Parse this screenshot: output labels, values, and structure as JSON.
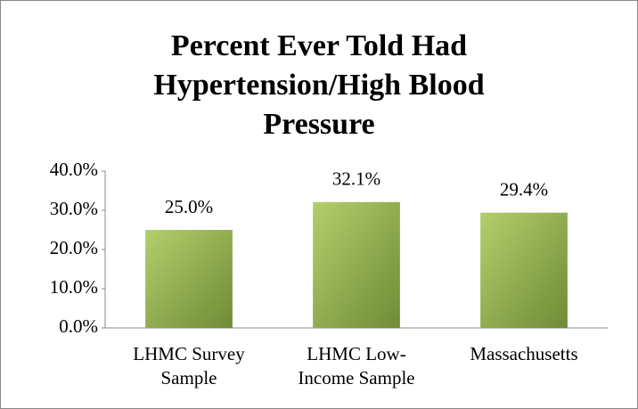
{
  "chart_data": {
    "type": "bar",
    "title": "Percent Ever Told Had Hypertension/High Blood Pressure",
    "categories": [
      "LHMC Survey Sample",
      "LHMC Low-Income Sample",
      "Massachusetts"
    ],
    "values": [
      25.0,
      32.1,
      29.4
    ],
    "value_labels": [
      "25.0%",
      "32.1%",
      "29.4%"
    ],
    "color": "#9bbb59",
    "ylim": [
      0,
      40
    ],
    "yticks": [
      {
        "value": 0,
        "label": "0.0%"
      },
      {
        "value": 10,
        "label": "10.0%"
      },
      {
        "value": 20,
        "label": "20.0%"
      },
      {
        "value": 30,
        "label": "30.0%"
      },
      {
        "value": 40,
        "label": "40.0%"
      }
    ],
    "grid": false
  }
}
